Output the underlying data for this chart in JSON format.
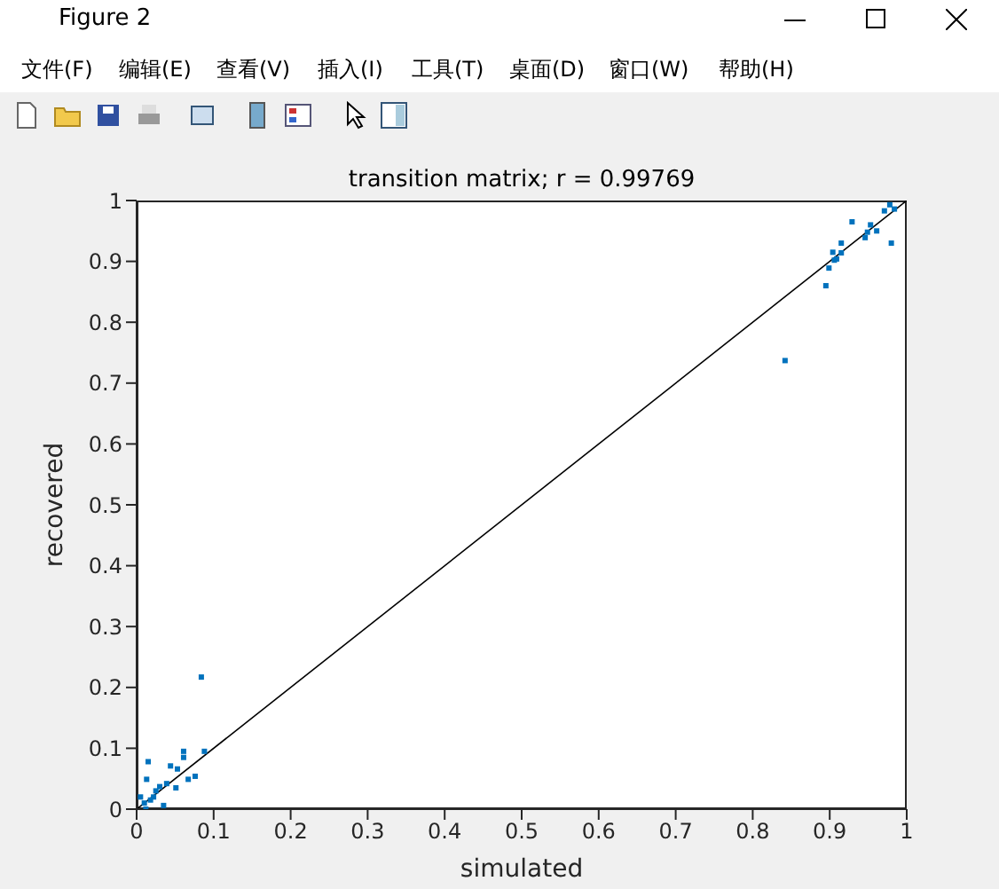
{
  "chart_data": {
    "type": "scatter",
    "title": "transition matrix; r = 0.99769",
    "xlabel": "simulated",
    "ylabel": "recovered",
    "annotations": [
      "Figure 2",
      "文件(F)",
      "编辑(E)",
      "查看(V)",
      "插入(I)",
      "工具(T)",
      "桌面(D)",
      "窗口(W)",
      "帮助(H)"
    ],
    "xlim": [
      0,
      1
    ],
    "ylim": [
      0,
      1
    ],
    "xticks": [
      0,
      0.1,
      0.2,
      0.3,
      0.4,
      0.5,
      0.6,
      0.7,
      0.8,
      0.9,
      1
    ],
    "yticks": [
      0,
      0.1,
      0.2,
      0.3,
      0.4,
      0.5,
      0.6,
      0.7,
      0.8,
      0.9,
      1
    ],
    "grid": false,
    "legend": false,
    "series": [
      {
        "marker": "square",
        "color": "#0072bd",
        "x": [
          0.084,
          0.015,
          0.061,
          0.061,
          0.044,
          0.053,
          0.088,
          0.076,
          0.067,
          0.051,
          0.039,
          0.03,
          0.013,
          0.035,
          0.022,
          0.01,
          0.005,
          0.018,
          0.025,
          0.012,
          0.842,
          0.895,
          0.899,
          0.904,
          0.909,
          0.915,
          0.915,
          0.929,
          0.946,
          0.949,
          0.953,
          0.961,
          0.98,
          0.971,
          0.978,
          0.984,
          0.906
        ],
        "values": [
          0.217,
          0.078,
          0.095,
          0.085,
          0.071,
          0.066,
          0.095,
          0.054,
          0.049,
          0.035,
          0.042,
          0.037,
          0.049,
          0.006,
          0.02,
          0.01,
          0.02,
          0.015,
          0.03,
          0.0,
          0.737,
          0.86,
          0.889,
          0.915,
          0.904,
          0.914,
          0.93,
          0.965,
          0.939,
          0.948,
          0.96,
          0.95,
          0.93,
          0.983,
          0.993,
          0.986,
          0.902
        ]
      },
      {
        "type": "line",
        "marker": "none",
        "color": "#000000",
        "x": [
          0,
          1
        ],
        "values": [
          0,
          1
        ]
      }
    ]
  }
}
